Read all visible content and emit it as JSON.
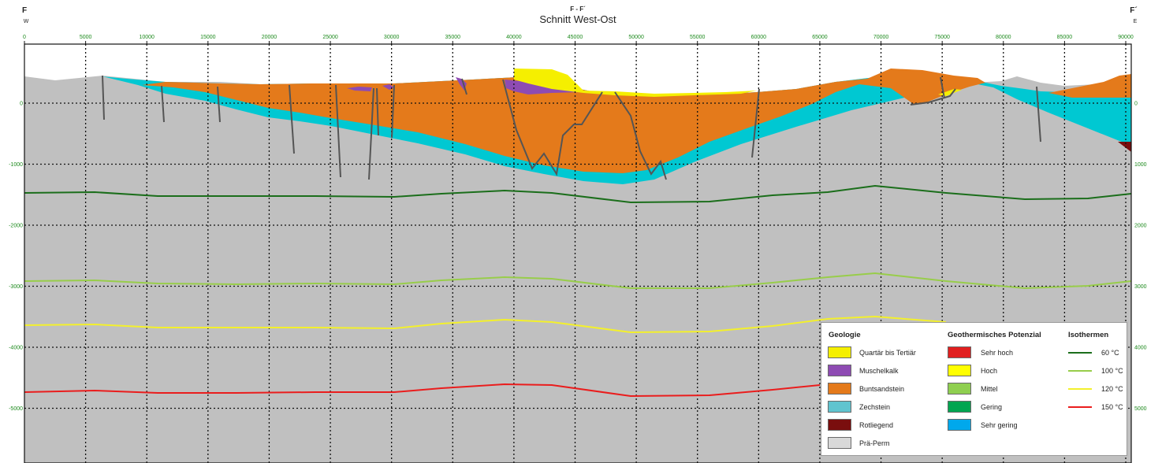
{
  "header": {
    "profile_id": "F - F´",
    "title": "Schnitt West-Ost",
    "left_symbol": "F",
    "left_direction": "W",
    "right_symbol": "F´",
    "right_direction": "E"
  },
  "axes": {
    "x_ticks": [
      "0",
      "5000",
      "10000",
      "15000",
      "20000",
      "25000",
      "30000",
      "35000",
      "40000",
      "45000",
      "50000",
      "55000",
      "60000",
      "65000",
      "70000",
      "75000",
      "80000",
      "85000",
      "90000"
    ],
    "y_ticks_left": [
      "0",
      "-1000",
      "-2000",
      "-3000",
      "-4000",
      "-5000"
    ],
    "y_ticks_right": [
      "0",
      "1000",
      "2000",
      "3000",
      "4000",
      "5000"
    ],
    "grid": "dotted"
  },
  "colors": {
    "quartaer": "#f5ef00",
    "muschelkalk": "#8e4bb3",
    "buntsandstein": "#e47a1b",
    "zechstein": "#00c8d2",
    "rotliegend": "#7a0e0e",
    "praeperm": "#c0c0c0",
    "fault": "#555555",
    "iso60": "#1b6e1b",
    "iso100": "#98cd4a",
    "iso120": "#f3f02c",
    "iso150": "#ea1d1d"
  },
  "legend": {
    "geologie": {
      "heading": "Geologie",
      "items": [
        {
          "label": "Quartär bis Tertiär",
          "color": "#f5ef00"
        },
        {
          "label": "Muschelkalk",
          "color": "#8e4bb3"
        },
        {
          "label": "Buntsandstein",
          "color": "#e47a1b"
        },
        {
          "label": "Zechstein",
          "color": "#60c4cf"
        },
        {
          "label": "Rotliegend",
          "color": "#7a0e0e"
        },
        {
          "label": "Prä-Perm",
          "color": "#d9d9d9"
        }
      ]
    },
    "potenzial": {
      "heading": "Geothermisches Potenzial",
      "items": [
        {
          "label": "Sehr hoch",
          "color": "#e11f1f"
        },
        {
          "label": "Hoch",
          "color": "#ffff00"
        },
        {
          "label": "Mittel",
          "color": "#8fcf50"
        },
        {
          "label": "Gering",
          "color": "#00a550"
        },
        {
          "label": "Sehr gering",
          "color": "#00a8ec"
        }
      ]
    },
    "isothermen": {
      "heading": "Isothermen",
      "items": [
        {
          "label": "60 °C",
          "color": "#1b6e1b"
        },
        {
          "label": "100 °C",
          "color": "#98cd4a"
        },
        {
          "label": "120 °C",
          "color": "#f3f02c"
        },
        {
          "label": "150 °C",
          "color": "#ea1d1d"
        }
      ]
    }
  }
}
